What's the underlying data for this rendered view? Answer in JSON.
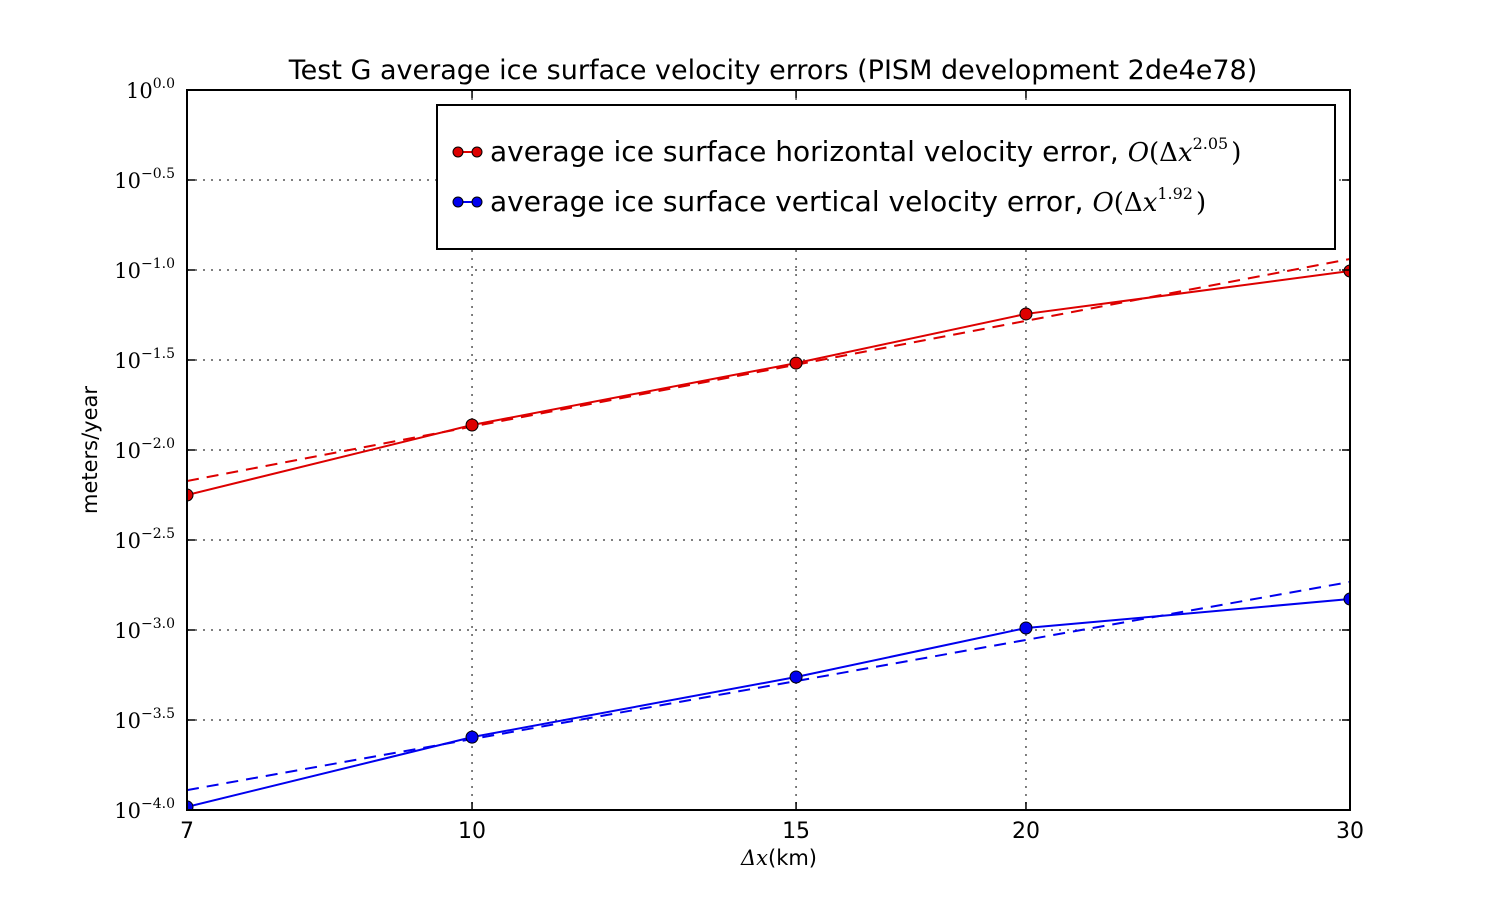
{
  "chart_data": {
    "type": "line",
    "title": "Test G average ice surface velocity errors (PISM development 2de4e78)",
    "xlabel_symbol": "Δx",
    "xlabel_unit": " (km)",
    "ylabel": "meters/year",
    "xscale": "log",
    "yscale": "log",
    "xlim": [
      7,
      30
    ],
    "ylim_log10": [
      -4.0,
      0.0
    ],
    "x_ticks": [
      7,
      10,
      15,
      20,
      30
    ],
    "x_tick_labels": [
      "7",
      "10",
      "15",
      "20",
      "30"
    ],
    "y_ticks_log10": [
      0.0,
      -0.5,
      -1.0,
      -1.5,
      -2.0,
      -2.5,
      -3.0,
      -3.5,
      -4.0
    ],
    "y_tick_exponents": [
      "0.0",
      "−0.5",
      "−1.0",
      "−1.5",
      "−2.0",
      "−2.5",
      "−3.0",
      "−3.5",
      "−4.0"
    ],
    "y_tick_base": "10",
    "grid": true,
    "legend_position": "top-center",
    "x": [
      7,
      10,
      15,
      20,
      30
    ],
    "series": [
      {
        "name": "average ice surface horizontal velocity error",
        "legend_text": "average ice surface horizontal velocity error, ",
        "order_exponent": "2.05",
        "color": "#dd0000",
        "values": [
          0.00562,
          0.01377,
          0.0304,
          0.057,
          0.0987
        ],
        "fit": {
          "style": "dashed",
          "x": [
            7,
            30
          ],
          "values": [
            0.00673,
            0.1151
          ]
        }
      },
      {
        "name": "average ice surface vertical velocity error",
        "legend_text": "average ice surface vertical velocity error, ",
        "order_exponent": "1.92",
        "color": "#0000ee",
        "values": [
          0.000104,
          0.000254,
          0.000548,
          0.001026,
          0.001486
        ],
        "fit": {
          "style": "dashed",
          "x": [
            7,
            30
          ],
          "values": [
            0.000129,
            0.00185
          ]
        }
      }
    ]
  }
}
